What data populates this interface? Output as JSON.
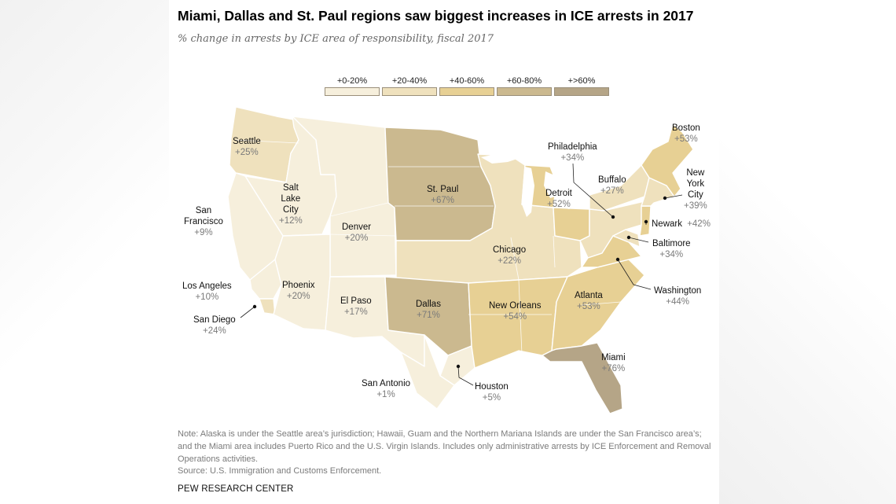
{
  "title": "Miami, Dallas and St. Paul regions saw biggest increases in ICE arrests in 2017",
  "subtitle": "% change in arrests by ICE area of responsibility, fiscal 2017",
  "legend": [
    {
      "label": "+0-20%",
      "color": "#f6efdc"
    },
    {
      "label": "+20-40%",
      "color": "#efe1bd"
    },
    {
      "label": "+40-60%",
      "color": "#e7d094"
    },
    {
      "label": "+60-80%",
      "color": "#cbb98f"
    },
    {
      "label": "+>60%",
      "color": "#b5a587"
    }
  ],
  "regions": {
    "seattle": {
      "name": "Seattle",
      "value": "+25%",
      "change_pct": 25,
      "color": "#efe1bd"
    },
    "san_francisco": {
      "name": "San Francisco",
      "name_lines": [
        "San",
        "Francisco"
      ],
      "value": "+9%",
      "change_pct": 9,
      "color": "#f6efdc"
    },
    "salt_lake_city": {
      "name": "Salt Lake City",
      "name_lines": [
        "Salt",
        "Lake",
        "City"
      ],
      "value": "+12%",
      "change_pct": 12,
      "color": "#f6efdc"
    },
    "denver": {
      "name": "Denver",
      "value": "+20%",
      "change_pct": 20,
      "color": "#f6efdc"
    },
    "st_paul": {
      "name": "St. Paul",
      "value": "+67%",
      "change_pct": 67,
      "color": "#cbb98f"
    },
    "chicago": {
      "name": "Chicago",
      "value": "+22%",
      "change_pct": 22,
      "color": "#efe1bd"
    },
    "detroit": {
      "name": "Detroit",
      "value": "+52%",
      "change_pct": 52,
      "color": "#e7d094"
    },
    "buffalo": {
      "name": "Buffalo",
      "value": "+27%",
      "change_pct": 27,
      "color": "#efe1bd"
    },
    "boston": {
      "name": "Boston",
      "value": "+53%",
      "change_pct": 53,
      "color": "#e7d094"
    },
    "new_york_city": {
      "name": "New York City",
      "name_lines": [
        "New",
        "York",
        "City"
      ],
      "value": "+39%",
      "change_pct": 39,
      "color": "#efe1bd"
    },
    "newark": {
      "name": "Newark",
      "value": "+42%",
      "change_pct": 42,
      "color": "#e7d094"
    },
    "philadelphia": {
      "name": "Philadelphia",
      "value": "+34%",
      "change_pct": 34,
      "color": "#efe1bd"
    },
    "baltimore": {
      "name": "Baltimore",
      "value": "+34%",
      "change_pct": 34,
      "color": "#efe1bd"
    },
    "washington": {
      "name": "Washington",
      "value": "+44%",
      "change_pct": 44,
      "color": "#e7d094"
    },
    "atlanta": {
      "name": "Atlanta",
      "value": "+53%",
      "change_pct": 53,
      "color": "#e7d094"
    },
    "new_orleans": {
      "name": "New Orleans",
      "value": "+54%",
      "change_pct": 54,
      "color": "#e7d094"
    },
    "dallas": {
      "name": "Dallas",
      "value": "+71%",
      "change_pct": 71,
      "color": "#cbb98f"
    },
    "miami": {
      "name": "Miami",
      "value": "+76%",
      "change_pct": 76,
      "color": "#b5a587"
    },
    "houston": {
      "name": "Houston",
      "value": "+5%",
      "change_pct": 5,
      "color": "#f6efdc"
    },
    "san_antonio": {
      "name": "San Antonio",
      "value": "+1%",
      "change_pct": 1,
      "color": "#f6efdc"
    },
    "el_paso": {
      "name": "El Paso",
      "value": "+17%",
      "change_pct": 17,
      "color": "#f6efdc"
    },
    "phoenix": {
      "name": "Phoenix",
      "value": "+20%",
      "change_pct": 20,
      "color": "#f6efdc"
    },
    "los_angeles": {
      "name": "Los Angeles",
      "value": "+10%",
      "change_pct": 10,
      "color": "#f6efdc"
    },
    "san_diego": {
      "name": "San Diego",
      "value": "+24%",
      "change_pct": 24,
      "color": "#efe1bd"
    }
  },
  "note": "Note: Alaska is under the Seattle area’s jurisdiction; Hawaii, Guam and the Northern Mariana Islands are under the San Francisco area’s; and the Miami area includes Puerto Rico and the U.S. Virgin Islands. Includes only administrative arrests by ICE Enforcement and Removal Operations activities.",
  "source": "Source: U.S. Immigration and Customs Enforcement.",
  "credit": "PEW RESEARCH CENTER"
}
